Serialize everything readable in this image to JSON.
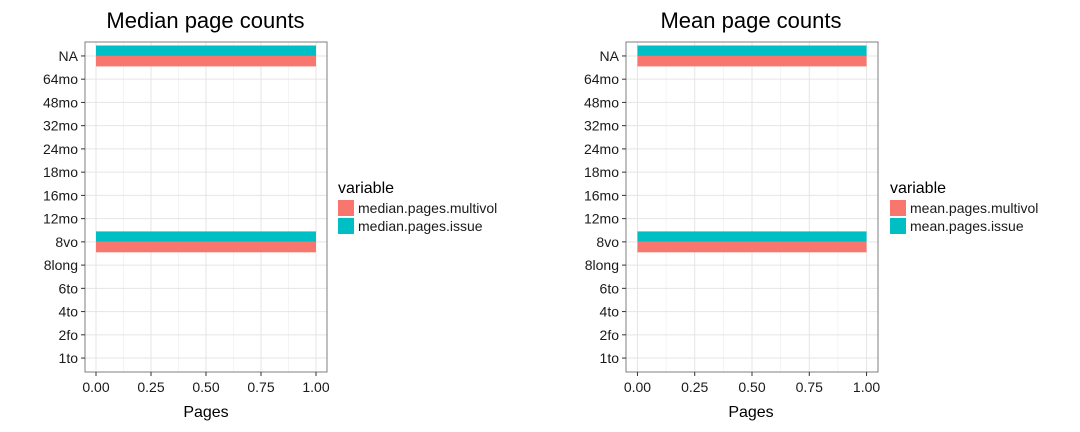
{
  "chart_data": [
    {
      "type": "bar",
      "orientation": "horizontal",
      "title": "Median page counts",
      "xlabel": "Pages",
      "ylabel": "",
      "xlim": [
        -0.05,
        1.05
      ],
      "x_ticks": [
        0,
        0.25,
        0.5,
        0.75,
        1
      ],
      "x_tick_labels": [
        "0.00",
        "0.25",
        "0.50",
        "0.75",
        "1.00"
      ],
      "categories": [
        "1to",
        "2fo",
        "4to",
        "6to",
        "8long",
        "8vo",
        "12mo",
        "16mo",
        "18mo",
        "24mo",
        "32mo",
        "48mo",
        "64mo",
        "NA"
      ],
      "series": [
        {
          "name": "median.pages.multivol",
          "color": "#F8766D",
          "values": [
            null,
            null,
            null,
            null,
            null,
            1,
            null,
            null,
            null,
            null,
            null,
            null,
            null,
            1
          ]
        },
        {
          "name": "median.pages.issue",
          "color": "#00BFC4",
          "values": [
            null,
            null,
            null,
            null,
            null,
            1,
            null,
            null,
            null,
            null,
            null,
            null,
            null,
            1
          ]
        }
      ],
      "legend_title": "variable",
      "legend_position": "right",
      "grid": true
    },
    {
      "type": "bar",
      "orientation": "horizontal",
      "title": "Mean page counts",
      "xlabel": "Pages",
      "ylabel": "",
      "xlim": [
        -0.05,
        1.05
      ],
      "x_ticks": [
        0,
        0.25,
        0.5,
        0.75,
        1
      ],
      "x_tick_labels": [
        "0.00",
        "0.25",
        "0.50",
        "0.75",
        "1.00"
      ],
      "categories": [
        "1to",
        "2fo",
        "4to",
        "6to",
        "8long",
        "8vo",
        "12mo",
        "16mo",
        "18mo",
        "24mo",
        "32mo",
        "48mo",
        "64mo",
        "NA"
      ],
      "series": [
        {
          "name": "mean.pages.multivol",
          "color": "#F8766D",
          "values": [
            null,
            null,
            null,
            null,
            null,
            1,
            null,
            null,
            null,
            null,
            null,
            null,
            null,
            1
          ]
        },
        {
          "name": "mean.pages.issue",
          "color": "#00BFC4",
          "values": [
            null,
            null,
            null,
            null,
            null,
            1,
            null,
            null,
            null,
            null,
            null,
            null,
            null,
            1
          ]
        }
      ],
      "legend_title": "variable",
      "legend_position": "right",
      "grid": true
    }
  ]
}
